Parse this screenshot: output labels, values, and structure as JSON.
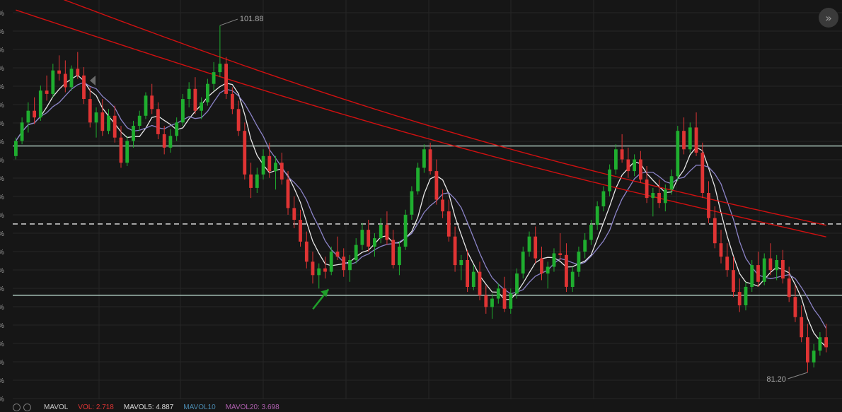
{
  "chart_data": {
    "type": "candlestick",
    "price_axis": {
      "unit": "%",
      "visible_label_fragment": "%"
    },
    "annotations": {
      "high_label": "101.88",
      "low_label": "81.20"
    },
    "ohlc": [
      [
        94.1,
        95.2,
        93.9,
        95.0
      ],
      [
        95.0,
        96.4,
        94.8,
        96.1
      ],
      [
        96.1,
        97.3,
        95.5,
        96.8
      ],
      [
        96.8,
        97.6,
        96.0,
        96.4
      ],
      [
        96.4,
        98.3,
        96.2,
        98.0
      ],
      [
        98.0,
        98.9,
        97.4,
        97.8
      ],
      [
        97.8,
        99.6,
        97.6,
        99.2
      ],
      [
        99.2,
        100.1,
        98.6,
        99.0
      ],
      [
        99.0,
        99.8,
        97.9,
        98.2
      ],
      [
        98.2,
        99.5,
        98.0,
        99.3
      ],
      [
        99.3,
        100.3,
        98.7,
        98.9
      ],
      [
        98.9,
        99.4,
        97.2,
        97.5
      ],
      [
        97.5,
        98.2,
        95.8,
        96.1
      ],
      [
        96.1,
        97.0,
        95.2,
        96.7
      ],
      [
        96.7,
        97.5,
        95.3,
        95.6
      ],
      [
        95.6,
        96.9,
        95.4,
        96.5
      ],
      [
        96.5,
        97.1,
        94.9,
        95.2
      ],
      [
        95.2,
        95.9,
        93.4,
        93.7
      ],
      [
        93.7,
        95.3,
        93.5,
        95.0
      ],
      [
        95.0,
        96.2,
        94.6,
        95.9
      ],
      [
        95.9,
        96.8,
        95.6,
        96.5
      ],
      [
        96.5,
        97.9,
        96.3,
        97.7
      ],
      [
        97.7,
        98.4,
        96.6,
        96.9
      ],
      [
        96.9,
        97.3,
        95.1,
        95.4
      ],
      [
        95.4,
        95.9,
        94.2,
        94.6
      ],
      [
        94.6,
        95.7,
        94.3,
        95.3
      ],
      [
        95.3,
        96.4,
        95.0,
        96.1
      ],
      [
        96.1,
        97.8,
        95.9,
        97.5
      ],
      [
        97.5,
        98.5,
        97.0,
        98.1
      ],
      [
        98.1,
        98.8,
        96.6,
        96.8
      ],
      [
        96.8,
        97.6,
        96.3,
        97.3
      ],
      [
        97.3,
        98.7,
        97.1,
        98.4
      ],
      [
        98.4,
        99.7,
        98.0,
        99.1
      ],
      [
        99.1,
        101.88,
        98.8,
        99.6
      ],
      [
        99.6,
        100.0,
        97.5,
        97.8
      ],
      [
        97.8,
        98.2,
        96.6,
        96.9
      ],
      [
        96.9,
        97.4,
        95.3,
        95.6
      ],
      [
        95.6,
        96.1,
        92.7,
        93.0
      ],
      [
        93.0,
        93.7,
        91.6,
        92.2
      ],
      [
        92.2,
        93.4,
        91.9,
        93.0
      ],
      [
        93.0,
        94.5,
        92.7,
        94.1
      ],
      [
        94.1,
        94.9,
        92.8,
        93.2
      ],
      [
        93.2,
        94.1,
        92.1,
        93.7
      ],
      [
        93.7,
        94.3,
        92.4,
        92.7
      ],
      [
        92.7,
        93.2,
        90.6,
        91.0
      ],
      [
        91.0,
        91.7,
        89.8,
        90.3
      ],
      [
        90.3,
        90.9,
        88.7,
        89.0
      ],
      [
        89.0,
        89.6,
        87.4,
        87.8
      ],
      [
        87.8,
        88.4,
        86.5,
        87.0
      ],
      [
        87.0,
        87.7,
        86.2,
        87.4
      ],
      [
        87.4,
        88.1,
        86.8,
        87.2
      ],
      [
        87.2,
        88.7,
        87.0,
        88.4
      ],
      [
        88.4,
        89.3,
        87.9,
        88.1
      ],
      [
        88.1,
        88.6,
        86.9,
        87.3
      ],
      [
        87.3,
        88.2,
        86.6,
        87.9
      ],
      [
        87.9,
        89.2,
        87.7,
        88.8
      ],
      [
        88.8,
        90.1,
        88.5,
        89.7
      ],
      [
        89.7,
        90.3,
        88.4,
        88.7
      ],
      [
        88.7,
        89.5,
        88.1,
        89.2
      ],
      [
        89.2,
        90.4,
        88.9,
        90.0
      ],
      [
        90.0,
        90.8,
        88.8,
        89.1
      ],
      [
        89.1,
        89.7,
        87.4,
        87.6
      ],
      [
        87.6,
        89.0,
        87.0,
        88.7
      ],
      [
        88.7,
        90.9,
        88.5,
        90.6
      ],
      [
        90.6,
        92.3,
        90.3,
        92.0
      ],
      [
        92.0,
        93.7,
        91.8,
        93.4
      ],
      [
        93.4,
        94.8,
        93.1,
        94.5
      ],
      [
        94.5,
        94.9,
        93.0,
        93.2
      ],
      [
        93.2,
        93.9,
        91.2,
        91.5
      ],
      [
        91.5,
        92.1,
        90.4,
        90.8
      ],
      [
        90.8,
        91.5,
        89.0,
        89.3
      ],
      [
        89.3,
        89.9,
        87.2,
        87.6
      ],
      [
        87.6,
        88.2,
        86.7,
        87.9
      ],
      [
        87.9,
        88.5,
        86.0,
        86.3
      ],
      [
        86.3,
        87.6,
        86.1,
        87.2
      ],
      [
        87.2,
        87.8,
        85.5,
        85.8
      ],
      [
        85.8,
        86.4,
        84.7,
        85.1
      ],
      [
        85.1,
        85.9,
        84.4,
        85.6
      ],
      [
        85.6,
        86.5,
        85.3,
        86.2
      ],
      [
        86.2,
        86.9,
        84.8,
        85.0
      ],
      [
        85.0,
        86.2,
        84.7,
        85.9
      ],
      [
        85.9,
        87.4,
        85.6,
        87.1
      ],
      [
        87.1,
        88.7,
        86.8,
        88.4
      ],
      [
        88.4,
        89.6,
        88.1,
        89.3
      ],
      [
        89.3,
        89.9,
        87.7,
        88.0
      ],
      [
        88.0,
        88.7,
        86.7,
        87.1
      ],
      [
        87.1,
        87.8,
        86.2,
        87.5
      ],
      [
        87.5,
        88.6,
        87.2,
        88.3
      ],
      [
        88.3,
        89.5,
        87.9,
        88.2
      ],
      [
        88.2,
        88.9,
        86.0,
        86.3
      ],
      [
        86.3,
        87.5,
        86.0,
        87.2
      ],
      [
        87.2,
        88.7,
        86.9,
        88.4
      ],
      [
        88.4,
        89.5,
        88.0,
        89.1
      ],
      [
        89.1,
        90.3,
        88.8,
        90.0
      ],
      [
        90.0,
        91.4,
        89.7,
        91.1
      ],
      [
        91.1,
        92.3,
        90.8,
        92.0
      ],
      [
        92.0,
        93.6,
        91.7,
        93.3
      ],
      [
        93.3,
        94.8,
        93.0,
        94.5
      ],
      [
        94.5,
        95.4,
        93.7,
        93.9
      ],
      [
        93.9,
        94.6,
        92.8,
        93.2
      ],
      [
        93.2,
        94.2,
        92.9,
        93.9
      ],
      [
        93.9,
        94.4,
        92.5,
        92.7
      ],
      [
        92.7,
        93.5,
        91.3,
        91.6
      ],
      [
        91.6,
        92.2,
        90.5,
        91.9
      ],
      [
        91.9,
        92.7,
        91.0,
        91.3
      ],
      [
        91.3,
        92.4,
        90.8,
        92.1
      ],
      [
        92.1,
        93.3,
        91.8,
        92.9
      ],
      [
        92.9,
        95.9,
        92.6,
        95.6
      ],
      [
        95.6,
        96.4,
        94.2,
        94.5
      ],
      [
        94.5,
        96.1,
        94.3,
        95.8
      ],
      [
        95.8,
        96.7,
        94.1,
        94.3
      ],
      [
        94.3,
        94.9,
        91.6,
        91.9
      ],
      [
        91.9,
        92.6,
        90.1,
        90.4
      ],
      [
        90.4,
        91.1,
        88.6,
        88.9
      ],
      [
        88.9,
        89.7,
        87.7,
        88.1
      ],
      [
        88.1,
        88.9,
        86.9,
        87.3
      ],
      [
        87.3,
        88.1,
        85.7,
        86.0
      ],
      [
        86.0,
        86.8,
        84.8,
        85.2
      ],
      [
        85.2,
        86.6,
        84.9,
        86.3
      ],
      [
        86.3,
        87.9,
        86.0,
        87.6
      ],
      [
        87.6,
        88.4,
        86.3,
        86.6
      ],
      [
        86.6,
        88.3,
        86.4,
        88.0
      ],
      [
        88.0,
        88.9,
        87.0,
        87.3
      ],
      [
        87.3,
        88.2,
        86.7,
        87.9
      ],
      [
        87.9,
        88.5,
        86.5,
        86.8
      ],
      [
        86.8,
        87.5,
        85.4,
        85.7
      ],
      [
        85.7,
        86.4,
        84.2,
        84.5
      ],
      [
        84.5,
        85.2,
        83.0,
        83.3
      ],
      [
        83.3,
        84.1,
        81.2,
        81.8
      ],
      [
        81.8,
        82.9,
        81.5,
        82.5
      ],
      [
        82.5,
        83.6,
        82.2,
        83.3
      ],
      [
        83.3,
        84.1,
        82.4,
        82.7
      ]
    ],
    "overlays": [
      {
        "name": "MA short",
        "color": "#e8e8e8"
      },
      {
        "name": "MA mid",
        "color": "#8c84c8"
      },
      {
        "name": "MA long A",
        "color": "#d01010"
      },
      {
        "name": "MA long B",
        "color": "#d01010"
      }
    ],
    "horizontal_levels": [
      {
        "value": 94.7,
        "style": "solid",
        "color": "#b9d8cc"
      },
      {
        "value": 90.05,
        "style": "dashed",
        "color": "#e6e6e6"
      },
      {
        "value": 85.8,
        "style": "solid",
        "color": "#b9d8cc"
      }
    ],
    "marker_arrow": {
      "index": 51,
      "color": "#1f9e2a",
      "direction": "up-right"
    },
    "colors": {
      "up": "#1fae2f",
      "down": "#e03434",
      "background": "#161616",
      "grid": "#262626"
    }
  },
  "toolbar": {
    "expand_icon": "double-chevron-right-icon",
    "expand_label": "»"
  },
  "volume_legend": {
    "indicator": "MAVOL",
    "vol": "VOL: 2.718",
    "ma5": "MAVOL5: 4.887",
    "ma10": "MAVOL10",
    "ma20": "MAVOL20: 3.698"
  }
}
